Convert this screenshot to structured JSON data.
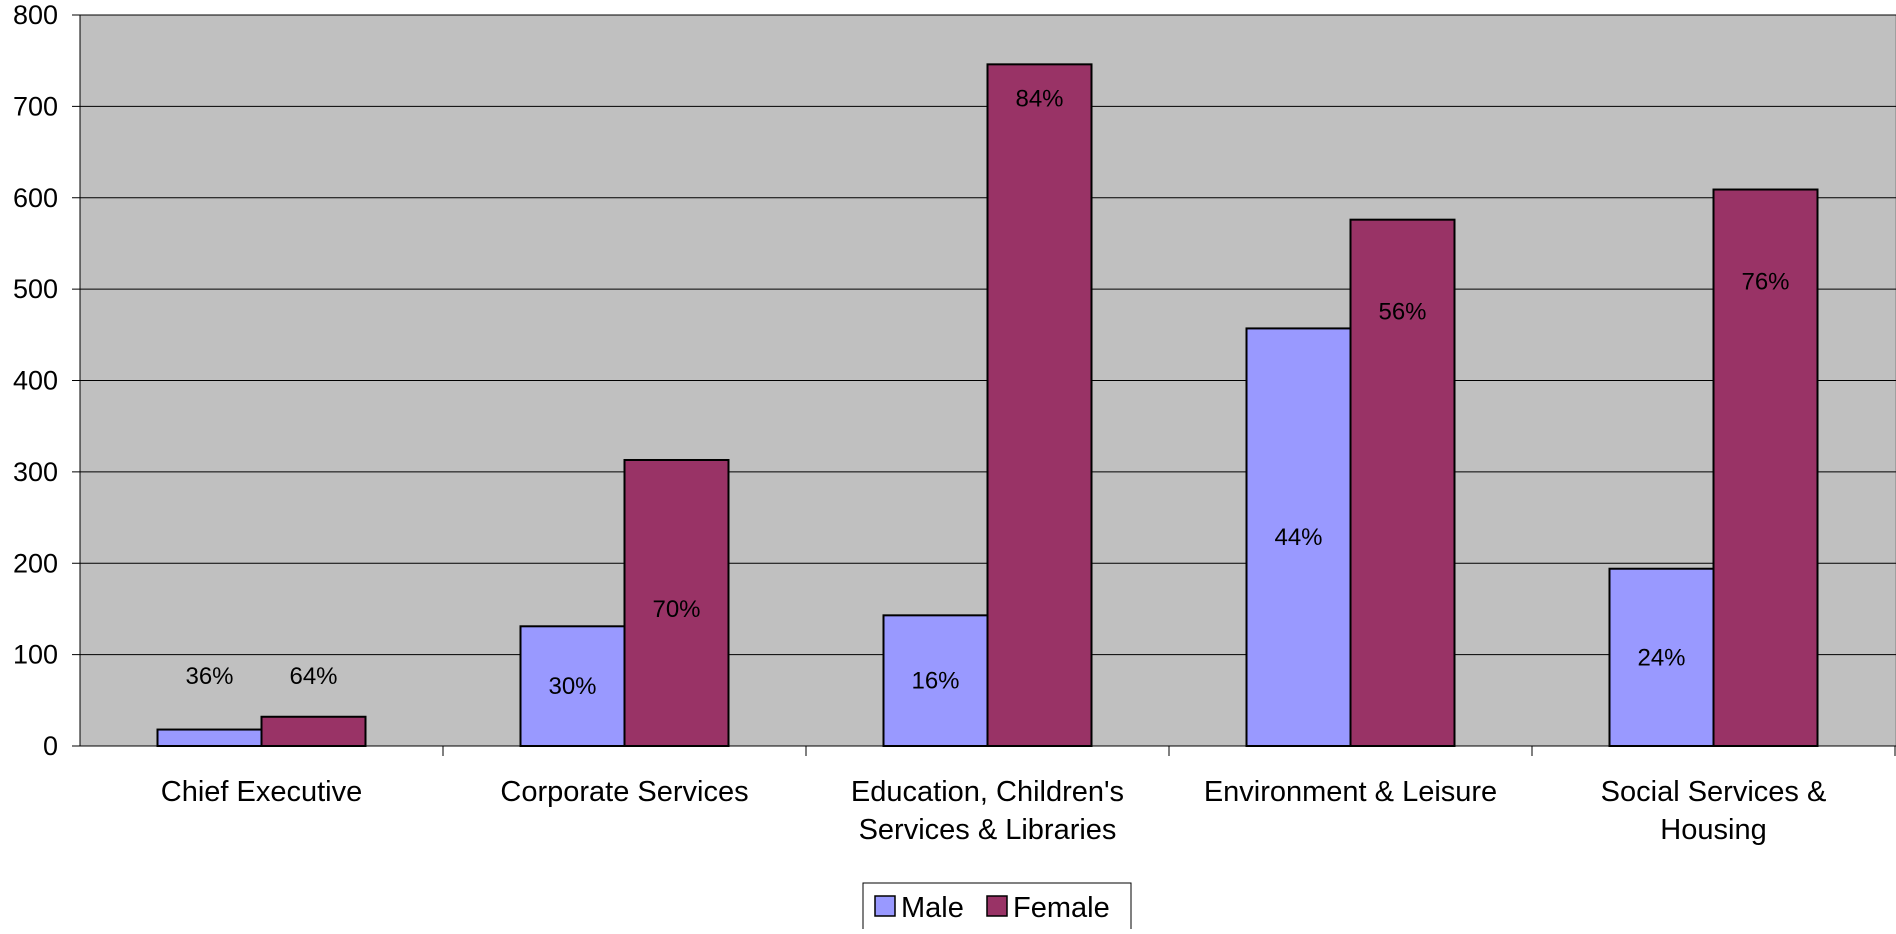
{
  "chart_data": {
    "type": "bar",
    "title": "",
    "xlabel": "",
    "ylabel": "",
    "ylim": [
      0,
      800
    ],
    "yticks": [
      0,
      100,
      200,
      300,
      400,
      500,
      600,
      700,
      800
    ],
    "grid": true,
    "legend_position": "bottom",
    "categories": [
      [
        "Chief Executive"
      ],
      [
        "Corporate Services"
      ],
      [
        "Education, Children's",
        "Services & Libraries"
      ],
      [
        "Environment & Leisure"
      ],
      [
        "Social Services &",
        "Housing"
      ]
    ],
    "series": [
      {
        "name": "Male",
        "color": "#9999ff",
        "values": [
          18,
          131,
          143,
          457,
          194
        ],
        "labels": [
          "36%",
          "30%",
          "16%",
          "44%",
          "24%"
        ]
      },
      {
        "name": "Female",
        "color": "#993366",
        "values": [
          32,
          313,
          746,
          576,
          609
        ],
        "labels": [
          "64%",
          "70%",
          "84%",
          "56%",
          "76%"
        ]
      }
    ],
    "plot_background": "#c0c0c0"
  }
}
